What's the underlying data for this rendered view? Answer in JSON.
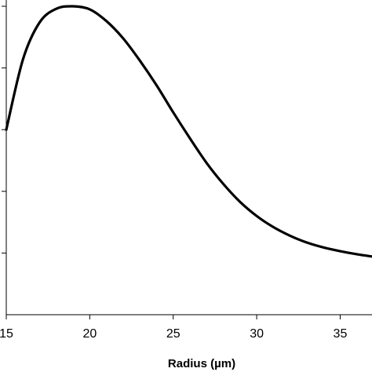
{
  "chart_data": {
    "type": "line",
    "title": "",
    "xlabel": "Radius (µm)",
    "ylabel": "",
    "xlim": [
      15,
      37
    ],
    "ylim": [
      0,
      5
    ],
    "grid": false,
    "legend": "none",
    "x_ticks": [
      15,
      20,
      25,
      30,
      35
    ],
    "x_tick_labels": [
      "15",
      "20",
      "25",
      "30",
      "35"
    ],
    "y_ticks": [
      1,
      2,
      3,
      4,
      5
    ],
    "y_tick_labels": [
      "",
      "",
      "",
      "",
      ""
    ],
    "line_color": "#000000",
    "series": [
      {
        "x": [
          15,
          16,
          17,
          18,
          19,
          20,
          21,
          22,
          23,
          24,
          25,
          26,
          27,
          28,
          29,
          30,
          31,
          32,
          33,
          34,
          35,
          36,
          37
        ],
        "y": [
          3.0,
          4.14,
          4.74,
          4.96,
          5.0,
          4.95,
          4.76,
          4.48,
          4.12,
          3.72,
          3.28,
          2.86,
          2.46,
          2.12,
          1.83,
          1.6,
          1.42,
          1.28,
          1.17,
          1.09,
          1.03,
          0.98,
          0.94
        ]
      }
    ]
  }
}
